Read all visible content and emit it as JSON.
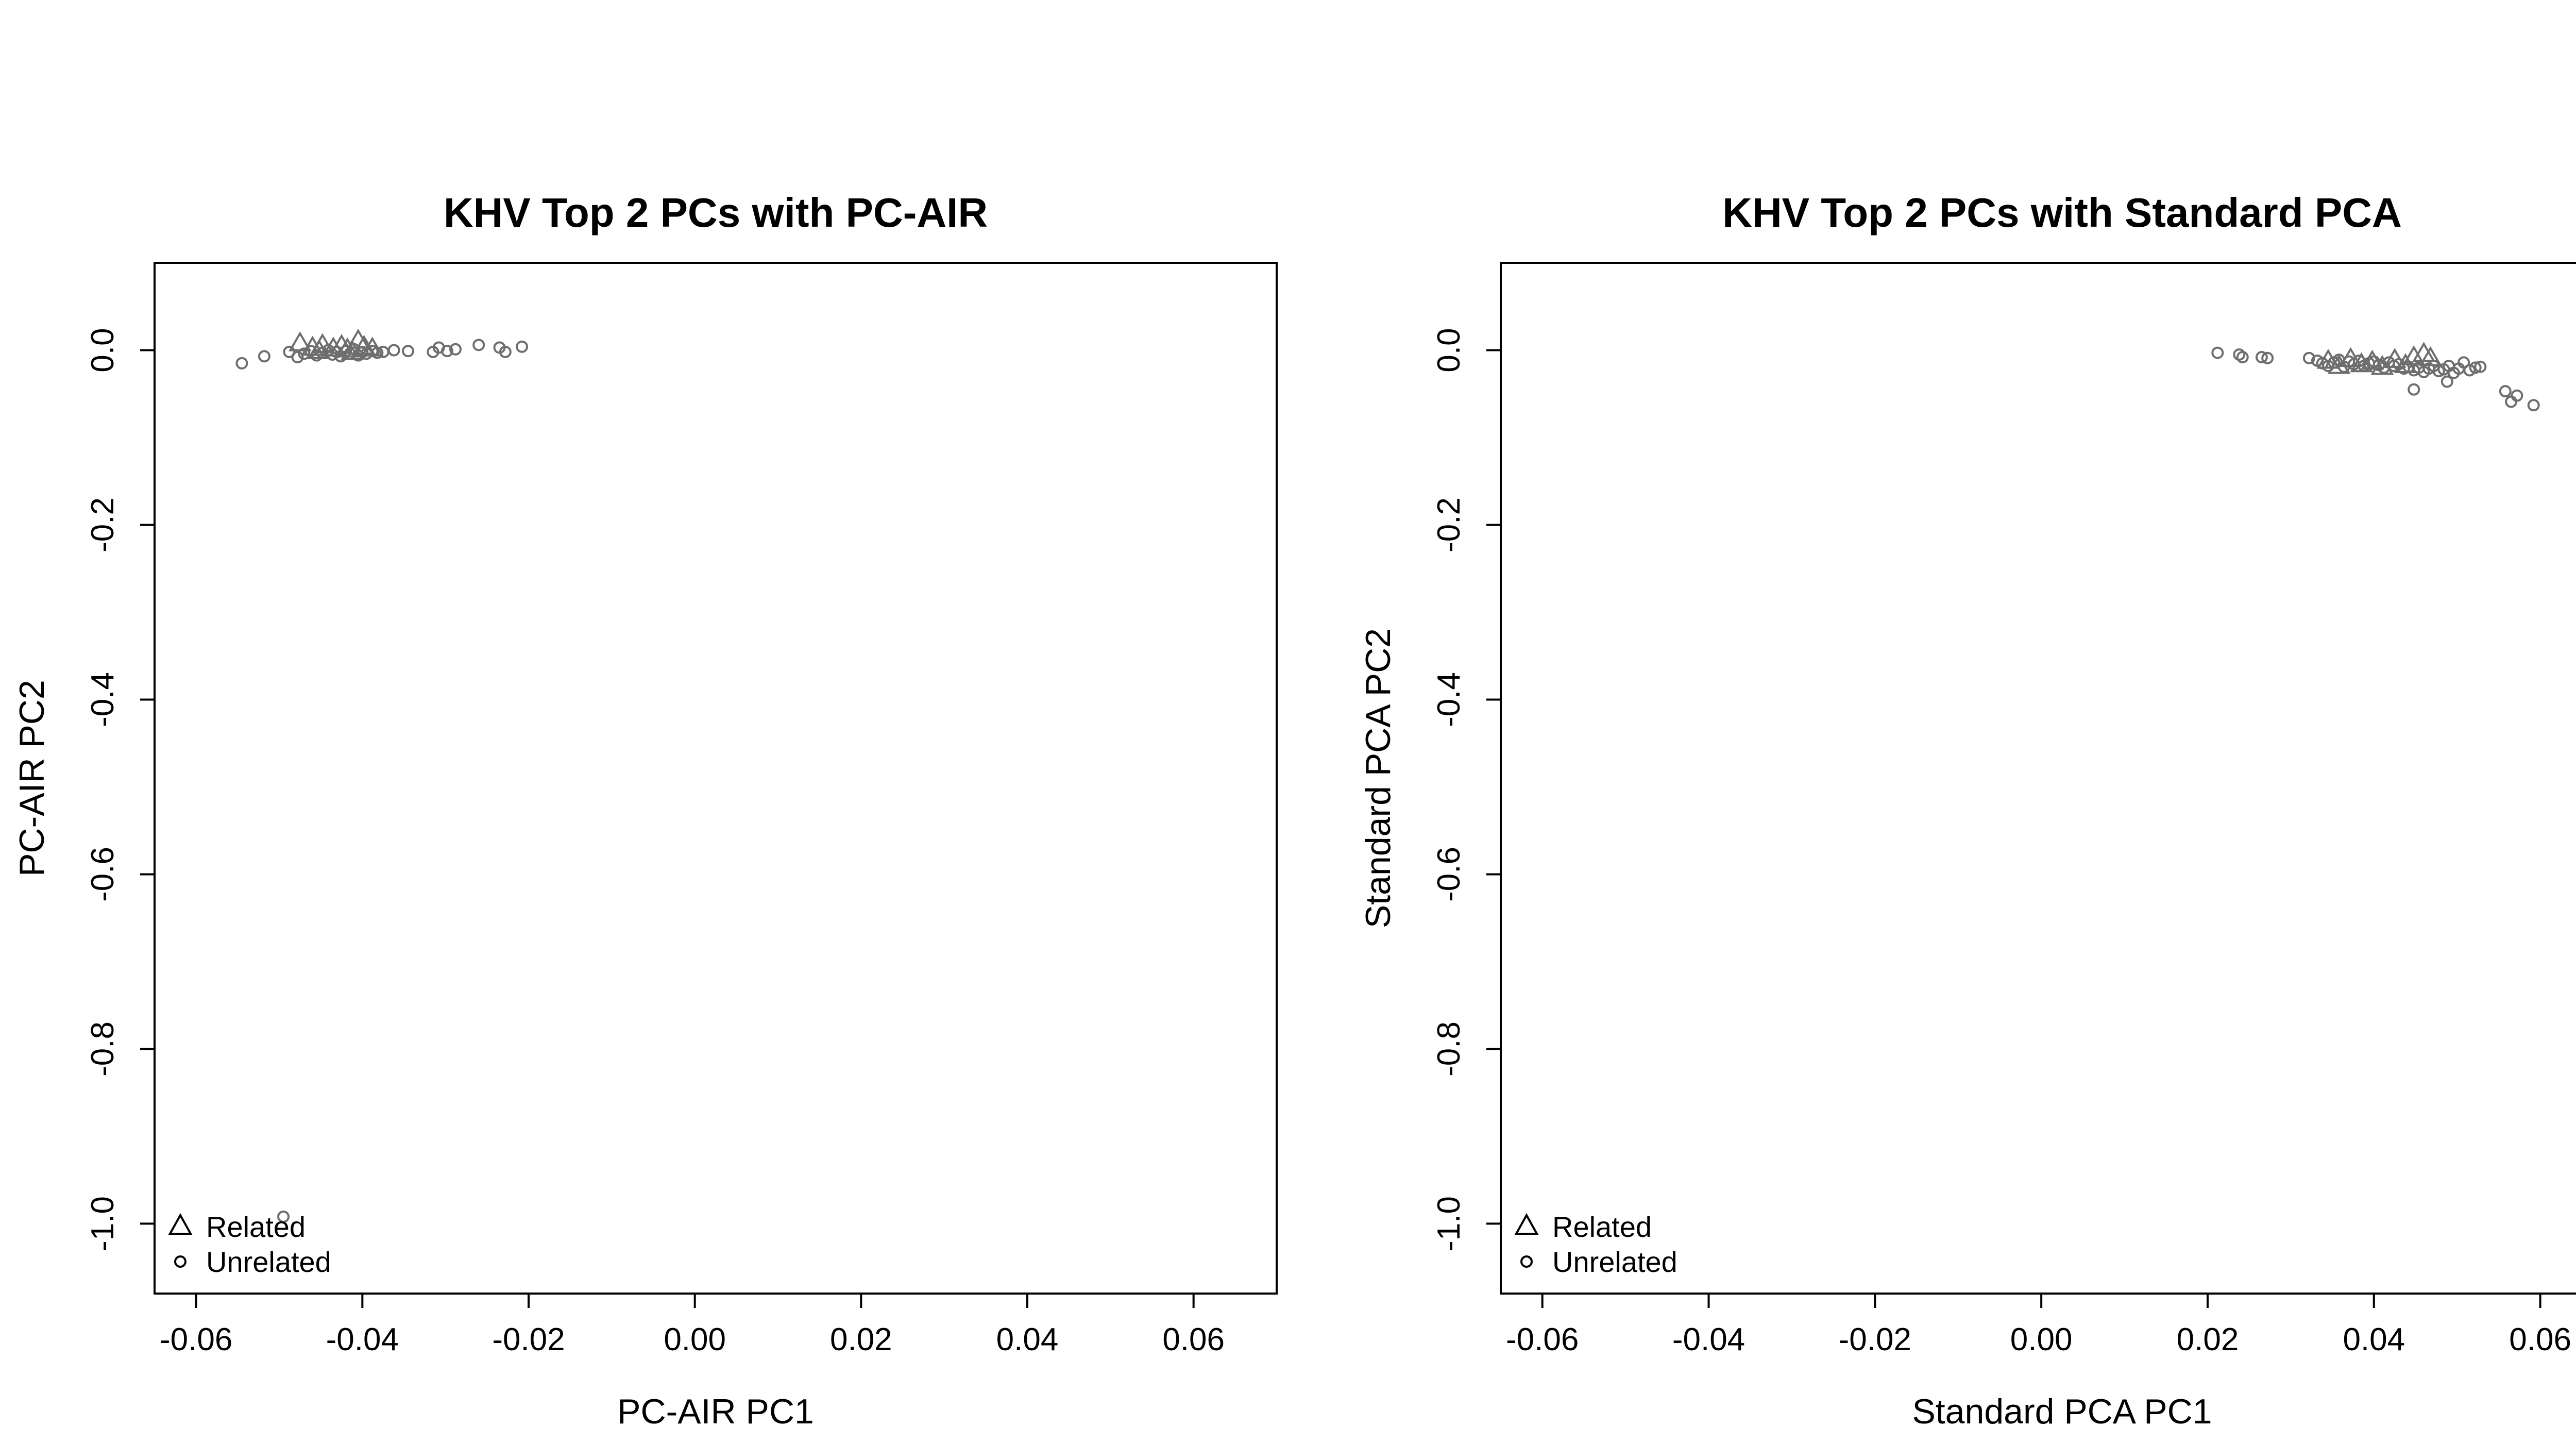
{
  "chart_data": [
    {
      "type": "scatter",
      "title": "KHV Top 2 PCs with PC-AIR",
      "xlabel": "PC-AIR PC1",
      "ylabel": "PC-AIR PC2",
      "xlim": [
        -0.065,
        0.07
      ],
      "ylim": [
        -1.08,
        0.1
      ],
      "xticks": [
        "-0.06",
        "-0.04",
        "-0.02",
        "0.00",
        "0.02",
        "0.04",
        "0.06"
      ],
      "yticks": [
        "0.0",
        "-0.2",
        "-0.4",
        "-0.6",
        "-0.8",
        "-1.0"
      ],
      "legend": {
        "position": "bottom-left",
        "entries": [
          "Related",
          "Unrelated"
        ]
      },
      "marker_color": "#6e6e6e",
      "series": [
        {
          "name": "Related",
          "marker": "triangle",
          "points": [
            [
              -0.0475,
              0.008
            ],
            [
              -0.046,
              0.003
            ],
            [
              -0.0448,
              0.006
            ],
            [
              -0.0435,
              0.002
            ],
            [
              -0.0425,
              0.005
            ],
            [
              -0.0418,
              0.001
            ],
            [
              -0.0405,
              0.011
            ],
            [
              -0.0398,
              0.004
            ],
            [
              -0.0388,
              0.002
            ],
            [
              -0.0452,
              -0.001
            ],
            [
              -0.0412,
              -0.002
            ]
          ]
        },
        {
          "name": "Unrelated",
          "marker": "circle",
          "points": [
            [
              -0.0545,
              -0.015
            ],
            [
              -0.0518,
              -0.007
            ],
            [
              -0.0488,
              -0.002
            ],
            [
              -0.0478,
              -0.008
            ],
            [
              -0.047,
              -0.004
            ],
            [
              -0.0462,
              -0.001
            ],
            [
              -0.0455,
              -0.006
            ],
            [
              -0.0448,
              -0.003
            ],
            [
              -0.0441,
              0.0
            ],
            [
              -0.0436,
              -0.005
            ],
            [
              -0.0431,
              -0.002
            ],
            [
              -0.0426,
              -0.007
            ],
            [
              -0.042,
              -0.001
            ],
            [
              -0.0415,
              -0.004
            ],
            [
              -0.041,
              0.001
            ],
            [
              -0.0405,
              -0.006
            ],
            [
              -0.04,
              -0.002
            ],
            [
              -0.0395,
              -0.004
            ],
            [
              -0.0388,
              -0.001
            ],
            [
              -0.0382,
              -0.003
            ],
            [
              -0.0375,
              -0.002
            ],
            [
              -0.0362,
              0.0
            ],
            [
              -0.0345,
              -0.001
            ],
            [
              -0.0315,
              -0.002
            ],
            [
              -0.0308,
              0.003
            ],
            [
              -0.0298,
              -0.001
            ],
            [
              -0.0288,
              0.001
            ],
            [
              -0.026,
              0.006
            ],
            [
              -0.0235,
              0.003
            ],
            [
              -0.0228,
              -0.002
            ],
            [
              -0.0208,
              0.004
            ],
            [
              -0.0495,
              -0.992
            ]
          ]
        }
      ]
    },
    {
      "type": "scatter",
      "title": "KHV Top 2 PCs with Standard PCA",
      "xlabel": "Standard PCA PC1",
      "ylabel": "Standard PCA PC2",
      "xlim": [
        -0.065,
        0.07
      ],
      "ylim": [
        -1.08,
        0.1
      ],
      "xticks": [
        "-0.06",
        "-0.04",
        "-0.02",
        "0.00",
        "0.02",
        "0.04",
        "0.06"
      ],
      "yticks": [
        "0.0",
        "-0.2",
        "-0.4",
        "-0.6",
        "-0.8",
        "-1.0"
      ],
      "legend": {
        "position": "bottom-left",
        "entries": [
          "Related",
          "Unrelated"
        ]
      },
      "marker_color": "#6e6e6e",
      "series": [
        {
          "name": "Related",
          "marker": "triangle",
          "points": [
            [
              0.0345,
              -0.012
            ],
            [
              0.0358,
              -0.018
            ],
            [
              0.0372,
              -0.01
            ],
            [
              0.0385,
              -0.016
            ],
            [
              0.0398,
              -0.013
            ],
            [
              0.041,
              -0.019
            ],
            [
              0.0425,
              -0.011
            ],
            [
              0.0438,
              -0.017
            ],
            [
              0.0448,
              -0.008
            ],
            [
              0.046,
              -0.004
            ],
            [
              0.0468,
              -0.009
            ]
          ]
        },
        {
          "name": "Unrelated",
          "marker": "circle",
          "points": [
            [
              0.0212,
              -0.003
            ],
            [
              0.0238,
              -0.005
            ],
            [
              0.0242,
              -0.008
            ],
            [
              0.0265,
              -0.008
            ],
            [
              0.0272,
              -0.009
            ],
            [
              0.0322,
              -0.009
            ],
            [
              0.0332,
              -0.012
            ],
            [
              0.0338,
              -0.015
            ],
            [
              0.0345,
              -0.018
            ],
            [
              0.0352,
              -0.014
            ],
            [
              0.0358,
              -0.011
            ],
            [
              0.0364,
              -0.019
            ],
            [
              0.037,
              -0.013
            ],
            [
              0.0376,
              -0.016
            ],
            [
              0.0382,
              -0.012
            ],
            [
              0.0388,
              -0.018
            ],
            [
              0.0394,
              -0.015
            ],
            [
              0.04,
              -0.013
            ],
            [
              0.0406,
              -0.017
            ],
            [
              0.0412,
              -0.02
            ],
            [
              0.0418,
              -0.014
            ],
            [
              0.0424,
              -0.018
            ],
            [
              0.043,
              -0.016
            ],
            [
              0.0436,
              -0.021
            ],
            [
              0.0442,
              -0.019
            ],
            [
              0.0448,
              -0.023
            ],
            [
              0.0454,
              -0.02
            ],
            [
              0.046,
              -0.025
            ],
            [
              0.0466,
              -0.021
            ],
            [
              0.0472,
              -0.018
            ],
            [
              0.0478,
              -0.024
            ],
            [
              0.0484,
              -0.022
            ],
            [
              0.049,
              -0.018
            ],
            [
              0.0496,
              -0.026
            ],
            [
              0.0502,
              -0.021
            ],
            [
              0.0508,
              -0.014
            ],
            [
              0.0515,
              -0.023
            ],
            [
              0.0522,
              -0.02
            ],
            [
              0.0528,
              -0.019
            ],
            [
              0.0448,
              -0.045
            ],
            [
              0.0488,
              -0.036
            ],
            [
              0.0558,
              -0.047
            ],
            [
              0.0565,
              -0.059
            ],
            [
              0.0572,
              -0.052
            ],
            [
              0.0592,
              -0.063
            ]
          ]
        }
      ]
    }
  ]
}
